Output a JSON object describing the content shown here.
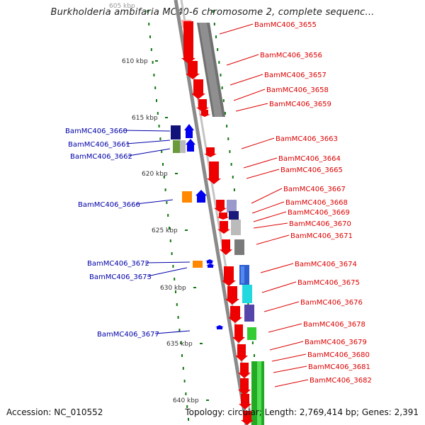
{
  "title": "Burkholderia ambifaria MC40-6 chromosome 2, complete sequenc...",
  "footer": {
    "accession": "Accession: NC_010552",
    "stats": "Topology: circular; Length: 2,769,414 bp; Genes: 2,391"
  },
  "scale": {
    "top_partial_label": "605 kbp",
    "ticks": [
      {
        "label": "610 kbp"
      },
      {
        "label": "615 kbp"
      },
      {
        "label": "620 kbp"
      },
      {
        "label": "625 kbp"
      },
      {
        "label": "630 kbp"
      },
      {
        "label": "635 kbp"
      },
      {
        "label": "640 kbp"
      }
    ]
  },
  "colors": {
    "forward_label": "#dd0000",
    "reverse_label": "#0000aa",
    "backbone": "#999999",
    "scale_dash": "#117711",
    "gene_red": "#ee0000"
  },
  "forward_genes": [
    {
      "label": "BamMC406_3655"
    },
    {
      "label": "BamMC406_3656"
    },
    {
      "label": "BamMC406_3657"
    },
    {
      "label": "BamMC406_3658"
    },
    {
      "label": "BamMC406_3659"
    },
    {
      "label": "BamMC406_3663"
    },
    {
      "label": "BamMC406_3664"
    },
    {
      "label": "BamMC406_3665"
    },
    {
      "label": "BamMC406_3667"
    },
    {
      "label": "BamMC406_3668"
    },
    {
      "label": "BamMC406_3669"
    },
    {
      "label": "BamMC406_3670"
    },
    {
      "label": "BamMC406_3671"
    },
    {
      "label": "BamMC406_3674"
    },
    {
      "label": "BamMC406_3675"
    },
    {
      "label": "BamMC406_3676"
    },
    {
      "label": "BamMC406_3678"
    },
    {
      "label": "BamMC406_3679"
    },
    {
      "label": "BamMC406_3680"
    },
    {
      "label": "BamMC406_3681"
    },
    {
      "label": "BamMC406_3682"
    }
  ],
  "reverse_genes": [
    {
      "label": "BamMC406_3660"
    },
    {
      "label": "BamMC406_3661"
    },
    {
      "label": "BamMC406_3662"
    },
    {
      "label": "BamMC406_3666"
    },
    {
      "label": "BamMC406_3672"
    },
    {
      "label": "BamMC406_3673"
    },
    {
      "label": "BamMC406_3677"
    }
  ]
}
